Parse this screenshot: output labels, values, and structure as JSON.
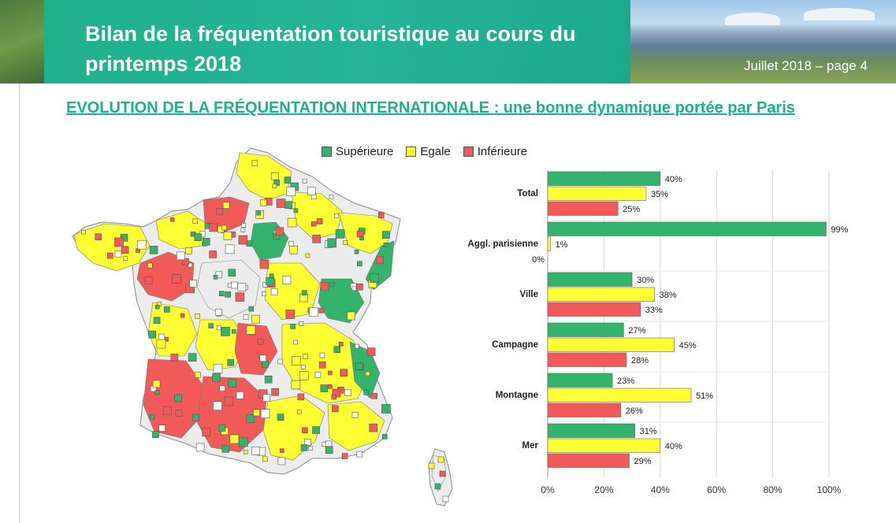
{
  "header": {
    "title": "Bilan de la fréquentation touristique au cours du printemps 2018",
    "page_info": "Juillet 2018 – page 4"
  },
  "subtitle": "EVOLUTION DE LA FRÉQUENTATION INTERNATIONALE : une bonne dynamique portée par Paris",
  "legend": {
    "items": [
      {
        "label": "Supérieure",
        "color": "#33b36b"
      },
      {
        "label": "Egale",
        "color": "#ffff33"
      },
      {
        "label": "Inférieure",
        "color": "#f25a5a"
      }
    ]
  },
  "colors": {
    "accent": "#1fb08c",
    "superieure": "#33b36b",
    "egale": "#ffff33",
    "inferieure": "#f25a5a"
  },
  "chart_data": {
    "type": "bar",
    "orientation": "horizontal",
    "categories": [
      "Total",
      "Aggl. parisienne",
      "Ville",
      "Campagne",
      "Montagne",
      "Mer"
    ],
    "series": [
      {
        "name": "Supérieure",
        "values": [
          40,
          99,
          30,
          27,
          23,
          31
        ],
        "labels": [
          "40%",
          "99%",
          "30%",
          "27%",
          "23%",
          "31%"
        ]
      },
      {
        "name": "Egale",
        "values": [
          35,
          1,
          38,
          45,
          51,
          40
        ],
        "labels": [
          "35%",
          "1%",
          "38%",
          "45%",
          "51%",
          "40%"
        ]
      },
      {
        "name": "Inférieure",
        "values": [
          25,
          0,
          33,
          28,
          26,
          29
        ],
        "labels": [
          "25%",
          "0%",
          "33%",
          "28%",
          "26%",
          "29%"
        ]
      }
    ],
    "xlim": [
      0,
      100
    ],
    "x_ticks": [
      "0%",
      "20%",
      "40%",
      "60%",
      "80%",
      "100%"
    ],
    "grid": true
  }
}
